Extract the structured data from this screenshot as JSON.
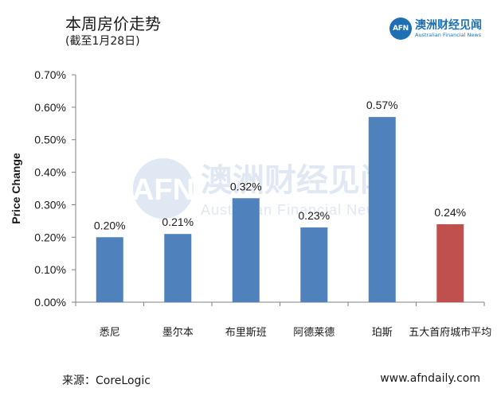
{
  "header": {
    "title": "本周房价走势",
    "subtitle": "(截至1月28日)"
  },
  "logo": {
    "mark": "AFN",
    "name": "澳洲财经见闻",
    "english": "Australian Financial News"
  },
  "watermark": {
    "name": "澳洲财经见闻",
    "english": "Australian Financial News"
  },
  "footer": {
    "source": "来源：CoreLogic",
    "website": "www.afndaily.com"
  },
  "colors": {
    "bar": "#4f81bd",
    "highlight": "#c0504d",
    "watermark": "#dfe8f3"
  },
  "chart_data": {
    "type": "bar",
    "ylabel": "Price Change",
    "categories": [
      "悉尼",
      "墨尔本",
      "布里斯班",
      "阿德莱德",
      "珀斯",
      "五大首府城市平均"
    ],
    "values": [
      0.2,
      0.21,
      0.32,
      0.23,
      0.57,
      0.24
    ],
    "data_labels": [
      "0.20%",
      "0.21%",
      "0.32%",
      "0.23%",
      "0.57%",
      "0.24%"
    ],
    "highlight_index": 5,
    "ylim": [
      0,
      0.7
    ],
    "yticks": [
      0.0,
      0.1,
      0.2,
      0.3,
      0.4,
      0.5,
      0.6,
      0.7
    ],
    "ytick_labels": [
      "0.00%",
      "0.10%",
      "0.20%",
      "0.30%",
      "0.40%",
      "0.50%",
      "0.60%",
      "0.70%"
    ],
    "grid": false,
    "legend": "none"
  }
}
